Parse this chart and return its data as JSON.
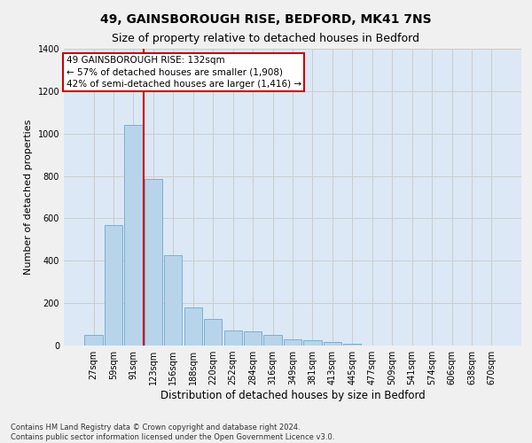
{
  "title_line1": "49, GAINSBOROUGH RISE, BEDFORD, MK41 7NS",
  "title_line2": "Size of property relative to detached houses in Bedford",
  "xlabel": "Distribution of detached houses by size in Bedford",
  "ylabel": "Number of detached properties",
  "categories": [
    "27sqm",
    "59sqm",
    "91sqm",
    "123sqm",
    "156sqm",
    "188sqm",
    "220sqm",
    "252sqm",
    "284sqm",
    "316sqm",
    "349sqm",
    "381sqm",
    "413sqm",
    "445sqm",
    "477sqm",
    "509sqm",
    "541sqm",
    "574sqm",
    "606sqm",
    "638sqm",
    "670sqm"
  ],
  "values": [
    50,
    570,
    1040,
    785,
    425,
    180,
    125,
    70,
    65,
    50,
    30,
    25,
    18,
    10,
    0,
    0,
    0,
    0,
    0,
    0,
    0
  ],
  "bar_color": "#b8d4ea",
  "bar_edge_color": "#7aafd4",
  "vline_x": 2.5,
  "vline_color": "#cc0000",
  "annotation_line0": "49 GAINSBOROUGH RISE: 132sqm",
  "annotation_line1": "← 57% of detached houses are smaller (1,908)",
  "annotation_line2": "42% of semi-detached houses are larger (1,416) →",
  "annotation_box_facecolor": "#ffffff",
  "annotation_box_edgecolor": "#cc0000",
  "ylim": [
    0,
    1400
  ],
  "yticks": [
    0,
    200,
    400,
    600,
    800,
    1000,
    1200,
    1400
  ],
  "grid_color": "#cccccc",
  "plot_bg_color": "#dce8f5",
  "fig_bg_color": "#f0f0f0",
  "footnote1": "Contains HM Land Registry data © Crown copyright and database right 2024.",
  "footnote2": "Contains public sector information licensed under the Open Government Licence v3.0.",
  "title_fontsize": 10,
  "subtitle_fontsize": 9,
  "ylabel_fontsize": 8,
  "xlabel_fontsize": 8.5,
  "tick_fontsize": 7,
  "annot_fontsize": 7.5,
  "footnote_fontsize": 6
}
